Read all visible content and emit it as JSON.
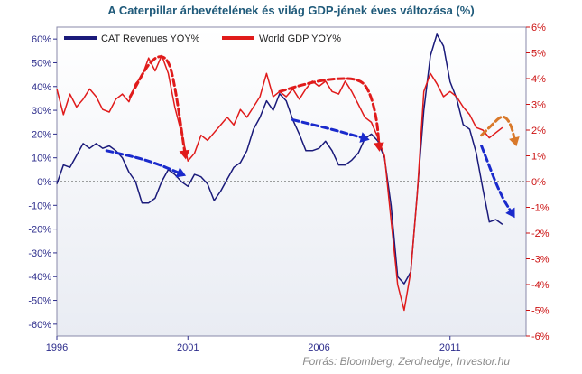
{
  "chart_data": {
    "type": "line",
    "title": "A Caterpillar árbevételének és  világ GDP-jének éves változása (%)",
    "source": "Forrás: Bloomberg, Zerohedge, Investor.hu",
    "x_ticks": [
      "1996",
      "2001",
      "2006",
      "2011"
    ],
    "y_left": {
      "range": [
        -65,
        65
      ],
      "ticks": [
        60,
        50,
        40,
        30,
        20,
        10,
        0,
        -10,
        -20,
        -30,
        -40,
        -50,
        -60
      ],
      "tick_labels": [
        "60%",
        "50%",
        "40%",
        "30%",
        "20%",
        "10%",
        "0%",
        "-10%",
        "-20%",
        "-30%",
        "-40%",
        "-50%",
        "-60%"
      ]
    },
    "y_right": {
      "range": [
        -6,
        6
      ],
      "ticks": [
        6,
        5,
        4,
        3,
        2,
        1,
        0,
        -1,
        -2,
        -3,
        -4,
        -5,
        -6
      ],
      "tick_labels": [
        "6%",
        "5%",
        "4%",
        "3%",
        "2%",
        "1%",
        "0%",
        "-1%",
        "-2%",
        "-3%",
        "-4%",
        "-5%",
        "-6%"
      ]
    },
    "x_range": [
      1996,
      2013.9
    ],
    "series": [
      {
        "name": "CAT Revenues YOY%",
        "axis": "left",
        "color": "#1a1a7a",
        "points": [
          [
            1996.0,
            -1
          ],
          [
            1996.25,
            7
          ],
          [
            1996.5,
            6
          ],
          [
            1996.75,
            11
          ],
          [
            1997.0,
            16
          ],
          [
            1997.25,
            14
          ],
          [
            1997.5,
            16
          ],
          [
            1997.75,
            14
          ],
          [
            1998.0,
            15
          ],
          [
            1998.25,
            13
          ],
          [
            1998.5,
            10
          ],
          [
            1998.75,
            4
          ],
          [
            1999.0,
            0
          ],
          [
            1999.25,
            -9
          ],
          [
            1999.5,
            -9
          ],
          [
            1999.75,
            -7
          ],
          [
            2000.0,
            0
          ],
          [
            2000.25,
            5
          ],
          [
            2000.5,
            3
          ],
          [
            2000.75,
            0
          ],
          [
            2001.0,
            -2
          ],
          [
            2001.25,
            3
          ],
          [
            2001.5,
            2
          ],
          [
            2001.75,
            -1
          ],
          [
            2002.0,
            -8
          ],
          [
            2002.25,
            -4
          ],
          [
            2002.5,
            1
          ],
          [
            2002.75,
            6
          ],
          [
            2003.0,
            8
          ],
          [
            2003.25,
            13
          ],
          [
            2003.5,
            22
          ],
          [
            2003.75,
            27
          ],
          [
            2004.0,
            34
          ],
          [
            2004.25,
            30
          ],
          [
            2004.5,
            37
          ],
          [
            2004.75,
            34
          ],
          [
            2005.0,
            26
          ],
          [
            2005.25,
            20
          ],
          [
            2005.5,
            13
          ],
          [
            2005.75,
            13
          ],
          [
            2006.0,
            14
          ],
          [
            2006.25,
            17
          ],
          [
            2006.5,
            13
          ],
          [
            2006.75,
            7
          ],
          [
            2007.0,
            7
          ],
          [
            2007.25,
            9
          ],
          [
            2007.5,
            12
          ],
          [
            2007.75,
            18
          ],
          [
            2008.0,
            20
          ],
          [
            2008.25,
            17
          ],
          [
            2008.5,
            10
          ],
          [
            2008.75,
            -10
          ],
          [
            2009.0,
            -40
          ],
          [
            2009.25,
            -43
          ],
          [
            2009.5,
            -38
          ],
          [
            2009.75,
            -5
          ],
          [
            2010.0,
            30
          ],
          [
            2010.25,
            53
          ],
          [
            2010.5,
            62
          ],
          [
            2010.75,
            57
          ],
          [
            2011.0,
            42
          ],
          [
            2011.25,
            35
          ],
          [
            2011.5,
            24
          ],
          [
            2011.75,
            22
          ],
          [
            2012.0,
            12
          ],
          [
            2012.25,
            -3
          ],
          [
            2012.5,
            -17
          ],
          [
            2012.75,
            -16
          ],
          [
            2013.0,
            -18
          ]
        ]
      },
      {
        "name": "World GDP YOY%",
        "axis": "right",
        "color": "#e01b1b",
        "points": [
          [
            1996.0,
            3.6
          ],
          [
            1996.25,
            2.6
          ],
          [
            1996.5,
            3.4
          ],
          [
            1996.75,
            2.9
          ],
          [
            1997.0,
            3.2
          ],
          [
            1997.25,
            3.6
          ],
          [
            1997.5,
            3.3
          ],
          [
            1997.75,
            2.8
          ],
          [
            1998.0,
            2.7
          ],
          [
            1998.25,
            3.2
          ],
          [
            1998.5,
            3.4
          ],
          [
            1998.75,
            3.1
          ],
          [
            1999.0,
            3.8
          ],
          [
            1999.25,
            4.1
          ],
          [
            1999.5,
            4.8
          ],
          [
            1999.75,
            4.3
          ],
          [
            2000.0,
            4.9
          ],
          [
            2000.25,
            4.2
          ],
          [
            2000.5,
            2.9
          ],
          [
            2000.75,
            1.9
          ],
          [
            2001.0,
            0.8
          ],
          [
            2001.25,
            1.1
          ],
          [
            2001.5,
            1.8
          ],
          [
            2001.75,
            1.6
          ],
          [
            2002.0,
            1.9
          ],
          [
            2002.25,
            2.2
          ],
          [
            2002.5,
            2.5
          ],
          [
            2002.75,
            2.2
          ],
          [
            2003.0,
            2.8
          ],
          [
            2003.25,
            2.5
          ],
          [
            2003.5,
            2.9
          ],
          [
            2003.75,
            3.3
          ],
          [
            2004.0,
            4.2
          ],
          [
            2004.25,
            3.3
          ],
          [
            2004.5,
            3.5
          ],
          [
            2004.75,
            3.3
          ],
          [
            2005.0,
            3.6
          ],
          [
            2005.25,
            3.2
          ],
          [
            2005.5,
            3.6
          ],
          [
            2005.75,
            3.9
          ],
          [
            2006.0,
            3.7
          ],
          [
            2006.25,
            3.9
          ],
          [
            2006.5,
            3.5
          ],
          [
            2006.75,
            3.4
          ],
          [
            2007.0,
            3.9
          ],
          [
            2007.25,
            3.5
          ],
          [
            2007.5,
            3.0
          ],
          [
            2007.75,
            2.5
          ],
          [
            2008.0,
            2.3
          ],
          [
            2008.25,
            1.7
          ],
          [
            2008.5,
            1.0
          ],
          [
            2008.75,
            -1.5
          ],
          [
            2009.0,
            -4.0
          ],
          [
            2009.25,
            -5.0
          ],
          [
            2009.5,
            -3.5
          ],
          [
            2009.75,
            -0.5
          ],
          [
            2010.0,
            3.5
          ],
          [
            2010.25,
            4.2
          ],
          [
            2010.5,
            3.8
          ],
          [
            2010.75,
            3.3
          ],
          [
            2011.0,
            3.5
          ],
          [
            2011.25,
            3.3
          ],
          [
            2011.5,
            2.9
          ],
          [
            2011.75,
            2.6
          ],
          [
            2012.0,
            2.1
          ],
          [
            2012.25,
            2.0
          ],
          [
            2012.5,
            1.7
          ],
          [
            2012.75,
            1.9
          ],
          [
            2013.0,
            2.1
          ]
        ]
      }
    ],
    "annotations": [
      {
        "color": "#e01b1b",
        "axis": "right",
        "points": [
          [
            1998.8,
            3.3
          ],
          [
            1999.6,
            4.8
          ],
          [
            2000.2,
            4.9
          ],
          [
            2000.5,
            3.8
          ],
          [
            2000.9,
            1.0
          ]
        ]
      },
      {
        "color": "#e01b1b",
        "axis": "right",
        "points": [
          [
            2004.5,
            3.5
          ],
          [
            2005.5,
            3.8
          ],
          [
            2006.5,
            4.0
          ],
          [
            2007.5,
            4.0
          ],
          [
            2007.9,
            3.6
          ],
          [
            2008.2,
            2.5
          ],
          [
            2008.3,
            1.3
          ]
        ]
      },
      {
        "color": "#1a2acc",
        "axis": "left",
        "points": [
          [
            1997.9,
            13
          ],
          [
            1999.5,
            9
          ],
          [
            2000.8,
            3
          ]
        ]
      },
      {
        "color": "#1a2acc",
        "axis": "left",
        "points": [
          [
            2005.0,
            26
          ],
          [
            2006.5,
            22
          ],
          [
            2007.8,
            18
          ]
        ]
      },
      {
        "color": "#1a2acc",
        "axis": "left",
        "points": [
          [
            2012.2,
            15
          ],
          [
            2012.9,
            -5
          ],
          [
            2013.4,
            -14
          ]
        ]
      },
      {
        "color": "#d9792a",
        "axis": "right",
        "points": [
          [
            2012.2,
            1.8
          ],
          [
            2012.6,
            2.2
          ],
          [
            2013.0,
            2.6
          ],
          [
            2013.3,
            2.3
          ],
          [
            2013.5,
            1.5
          ]
        ]
      }
    ],
    "legend": "top-left",
    "grid": false
  }
}
